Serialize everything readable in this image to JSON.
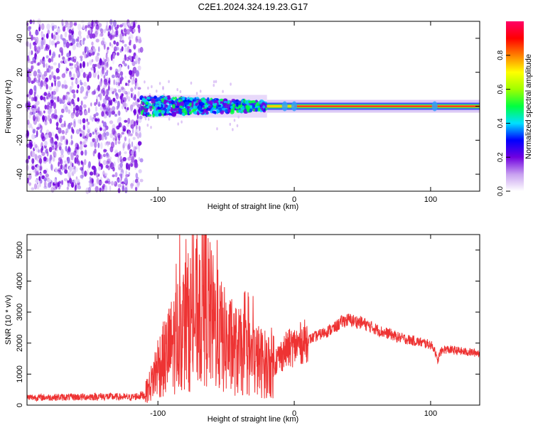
{
  "title": "C2E1.2024.324.19.23.G17",
  "colors": {
    "snr_line": "#ee3333",
    "band_core": "#ff2020"
  },
  "chart_data": [
    {
      "type": "heatmap",
      "name": "spectrogram",
      "xlabel": "Height of straight line (km)",
      "ylabel": "Frequency (Hz)",
      "xlim": [
        -196,
        136
      ],
      "ylim": [
        -50,
        50
      ],
      "x_ticks": [
        -100,
        0,
        100
      ],
      "x_tick_labels": [
        "-100",
        "0",
        "100"
      ],
      "y_ticks": [
        -40,
        -20,
        0,
        20,
        40
      ],
      "y_tick_labels": [
        "-40",
        "-20",
        "0",
        "20",
        "40"
      ],
      "noise_region_x": [
        -196,
        -112
      ],
      "transition_region_x": [
        -112,
        -20
      ],
      "tone_region_x": [
        -20,
        136
      ],
      "tone_frequency": 0,
      "colorbar": {
        "label": "Normalized spectral amplitude",
        "range": [
          0,
          1
        ],
        "ticks": [
          0.0,
          0.2,
          0.4,
          0.6,
          0.8
        ],
        "tick_labels": [
          "0.0",
          "0.2",
          "0.4",
          "0.6",
          "0.8"
        ],
        "colorscale": [
          "#ffffff",
          "#c8a0f0",
          "#7000e0",
          "#0000ff",
          "#00e0ff",
          "#00ff40",
          "#a0ff00",
          "#ffff00",
          "#ff8000",
          "#ff0000",
          "#ff0066"
        ]
      }
    },
    {
      "type": "line",
      "name": "snr",
      "xlabel": "Height of straight line (km)",
      "ylabel": "SNR (10 * v/v)",
      "xlim": [
        -196,
        136
      ],
      "ylim": [
        0,
        5500
      ],
      "x_ticks": [
        -100,
        0,
        100
      ],
      "x_tick_labels": [
        "-100",
        "0",
        "100"
      ],
      "y_ticks": [
        0,
        1000,
        2000,
        3000,
        4000,
        5000
      ],
      "y_tick_labels": [
        "0",
        "1000",
        "2000",
        "3000",
        "4000",
        "5000"
      ],
      "series": [
        {
          "x": [
            -196,
            -180,
            -160,
            -140,
            -120,
            -110,
            -105,
            -100,
            -95,
            -90,
            -85,
            -80,
            -75,
            -70,
            -68,
            -65,
            -62,
            -60,
            -55,
            -50,
            -45,
            -40,
            -35,
            -30,
            -25,
            -20,
            -15,
            -12,
            -10,
            -5,
            0,
            5,
            10,
            15,
            20,
            25,
            30,
            35,
            40,
            45,
            50,
            55,
            60,
            65,
            70,
            75,
            80,
            85,
            90,
            95,
            100,
            103,
            105,
            107,
            110,
            115,
            120,
            125,
            130,
            136
          ],
          "y": [
            250,
            250,
            260,
            280,
            250,
            330,
            700,
            1300,
            1500,
            1900,
            2300,
            2600,
            2800,
            3000,
            3300,
            3500,
            2900,
            2700,
            2300,
            2000,
            1800,
            1700,
            1600,
            1500,
            1400,
            1300,
            1400,
            1500,
            1600,
            1800,
            1900,
            2000,
            2100,
            2200,
            2300,
            2400,
            2500,
            2700,
            2750,
            2700,
            2650,
            2550,
            2450,
            2350,
            2300,
            2200,
            2150,
            2100,
            2050,
            2000,
            1950,
            1800,
            1400,
            1700,
            1800,
            1780,
            1750,
            1720,
            1700,
            1680
          ]
        }
      ]
    }
  ]
}
